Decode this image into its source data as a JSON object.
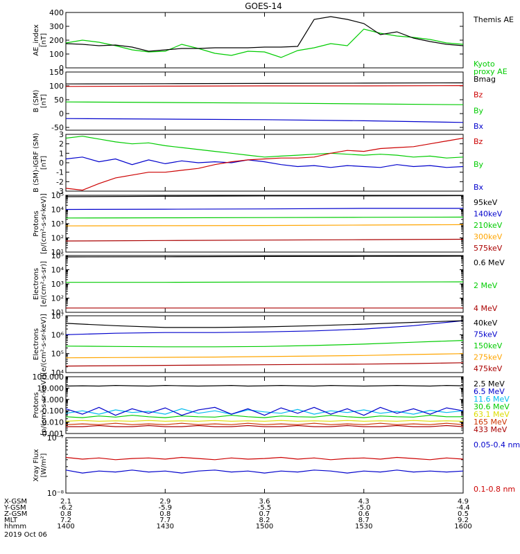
{
  "title": "GOES-14",
  "colors": {
    "black": "#000000",
    "red": "#cc0000",
    "green": "#00cc00",
    "blue": "#0000cc",
    "orange": "#ffa500",
    "cyan": "#00bbee",
    "yellow": "#dddd00",
    "magenta": "#cc00cc",
    "darkred": "#aa0000"
  },
  "x_axis": {
    "rows": [
      {
        "label": "X-GSM",
        "values": [
          "2.1",
          "2.9",
          "3.6",
          "4.3",
          "4.9"
        ]
      },
      {
        "label": "Y-GSM",
        "values": [
          "-6.2",
          "-5.9",
          "-5.5",
          "-5.0",
          "-4.4"
        ]
      },
      {
        "label": "Z-GSM",
        "values": [
          "0.8",
          "0.8",
          "0.7",
          "0.6",
          "0.5"
        ]
      },
      {
        "label": "MLT",
        "values": [
          "7.2",
          "7.7",
          "8.2",
          "8.7",
          "9.2"
        ]
      },
      {
        "label": "hhmm",
        "values": [
          "1400",
          "1430",
          "1500",
          "1530",
          "1600"
        ]
      }
    ],
    "date": "2019 Oct 06"
  },
  "chart_data": [
    {
      "type": "line",
      "ylabel": "AE_index\n[nT]",
      "ylim": [
        0,
        400
      ],
      "log": false,
      "yticks": [
        0,
        100,
        200,
        300,
        400
      ],
      "yticklabels": [
        "0",
        "100",
        "200",
        "300",
        "400"
      ],
      "x": [
        1400,
        1405,
        1410,
        1415,
        1420,
        1425,
        1430,
        1435,
        1440,
        1445,
        1450,
        1455,
        1500,
        1505,
        1510,
        1515,
        1520,
        1525,
        1530,
        1535,
        1540,
        1545,
        1550,
        1555,
        1600
      ],
      "series": [
        {
          "name": "Kyoto\nproxy AE",
          "color": "#00cc00",
          "values": [
            180,
            200,
            185,
            160,
            130,
            115,
            120,
            170,
            140,
            105,
            90,
            120,
            115,
            75,
            125,
            145,
            175,
            160,
            280,
            250,
            230,
            220,
            205,
            180,
            170
          ]
        },
        {
          "name": "Themis AE",
          "color": "#000000",
          "values": [
            175,
            170,
            160,
            165,
            150,
            120,
            130,
            140,
            140,
            145,
            145,
            145,
            150,
            150,
            155,
            350,
            370,
            350,
            320,
            240,
            260,
            215,
            190,
            170,
            160
          ]
        }
      ],
      "legend_placement": "right"
    },
    {
      "type": "line",
      "ylabel": "B (SM)\n[nT]",
      "ylim": [
        -60,
        150
      ],
      "log": false,
      "yticks": [
        -50,
        0,
        50,
        100,
        150
      ],
      "yticklabels": [
        "-50",
        "0",
        "50",
        "100",
        "150"
      ],
      "x": [
        1400,
        1430,
        1500,
        1530,
        1600
      ],
      "series": [
        {
          "name": "Bx",
          "color": "#0000cc",
          "values": [
            -18,
            -20,
            -22,
            -26,
            -32
          ]
        },
        {
          "name": "By",
          "color": "#00cc00",
          "values": [
            42,
            40,
            38,
            35,
            32
          ]
        },
        {
          "name": "Bz",
          "color": "#cc0000",
          "values": [
            98,
            99,
            100,
            100,
            101
          ]
        },
        {
          "name": "Bmag",
          "color": "#000000",
          "values": [
            107,
            108,
            109,
            110,
            111
          ]
        }
      ],
      "legend_placement": "right"
    },
    {
      "type": "line",
      "ylabel": "B (SM)-IGRF (SM)\n[nT]",
      "ylim": [
        -3,
        3
      ],
      "log": false,
      "yticks": [
        -3,
        -2,
        -1,
        0,
        1,
        2,
        3
      ],
      "yticklabels": [
        "-3",
        "-2",
        "-1",
        "0",
        "1",
        "2",
        "3"
      ],
      "x": [
        1400,
        1405,
        1410,
        1415,
        1420,
        1425,
        1430,
        1435,
        1440,
        1445,
        1450,
        1455,
        1500,
        1505,
        1510,
        1515,
        1520,
        1525,
        1530,
        1535,
        1540,
        1545,
        1550,
        1555,
        1600
      ],
      "series": [
        {
          "name": "Bx",
          "color": "#0000cc",
          "values": [
            0.4,
            0.6,
            0.1,
            0.4,
            -0.2,
            0.3,
            -0.1,
            0.2,
            0.0,
            0.1,
            0.0,
            0.3,
            0.1,
            -0.2,
            -0.4,
            -0.3,
            -0.5,
            -0.3,
            -0.4,
            -0.5,
            -0.2,
            -0.4,
            -0.3,
            -0.5,
            -0.4
          ]
        },
        {
          "name": "By",
          "color": "#00cc00",
          "values": [
            2.6,
            2.8,
            2.5,
            2.2,
            2.0,
            2.1,
            1.8,
            1.6,
            1.4,
            1.2,
            1.0,
            0.8,
            0.6,
            0.7,
            0.8,
            0.9,
            1.0,
            0.9,
            0.8,
            0.9,
            0.8,
            0.6,
            0.7,
            0.5,
            0.6
          ]
        },
        {
          "name": "Bz",
          "color": "#cc0000",
          "values": [
            -2.7,
            -2.9,
            -2.2,
            -1.6,
            -1.3,
            -1.0,
            -1.0,
            -0.8,
            -0.6,
            -0.2,
            0.1,
            0.3,
            0.4,
            0.5,
            0.5,
            0.6,
            1.0,
            1.3,
            1.2,
            1.5,
            1.6,
            1.7,
            2.0,
            2.3,
            2.6
          ]
        }
      ],
      "legend_placement": "right"
    },
    {
      "type": "line",
      "ylabel": "Protons\n[p/(cm²-s-sr-keV)]",
      "ylim": [
        10,
        100000
      ],
      "log": true,
      "yticks": [
        10,
        100,
        1000,
        10000,
        100000
      ],
      "yticklabels": [
        "10¹",
        "10²",
        "10³",
        "10⁴",
        "10⁵"
      ],
      "x": [
        1400,
        1430,
        1500,
        1530,
        1600
      ],
      "series": [
        {
          "name": "575keV",
          "color": "#aa0000",
          "values": [
            60,
            65,
            70,
            75,
            80
          ]
        },
        {
          "name": "300keV",
          "color": "#ffa500",
          "values": [
            700,
            720,
            750,
            800,
            850
          ]
        },
        {
          "name": "210keV",
          "color": "#00cc00",
          "values": [
            2500,
            2600,
            2700,
            2800,
            2900
          ]
        },
        {
          "name": "140keV",
          "color": "#0000cc",
          "values": [
            10000,
            10500,
            11000,
            12000,
            12000
          ]
        },
        {
          "name": "95keV",
          "color": "#000000",
          "values": [
            80000,
            85000,
            90000,
            90000,
            95000
          ]
        }
      ],
      "legend_placement": "right"
    },
    {
      "type": "line",
      "ylabel": "Electrons\n[e/(cm²-s-sr)]",
      "ylim": [
        10,
        100000
      ],
      "log": true,
      "yticks": [
        10,
        100,
        1000,
        10000,
        100000
      ],
      "yticklabels": [
        "10¹",
        "10²",
        "10³",
        "10⁴",
        "10⁵"
      ],
      "x": [
        1400,
        1430,
        1500,
        1530,
        1600
      ],
      "series": [
        {
          "name": "4 MeV",
          "color": "#aa0000",
          "values": [
            20,
            20,
            20,
            20,
            20
          ]
        },
        {
          "name": "2 MeV",
          "color": "#00cc00",
          "values": [
            1300,
            1300,
            1350,
            1350,
            1400
          ]
        },
        {
          "name": "0.6 MeV",
          "color": "#000000",
          "values": [
            80000,
            82000,
            85000,
            87000,
            90000
          ]
        }
      ],
      "legend_placement": "right"
    },
    {
      "type": "line",
      "ylabel": "Electrons\n[e/(cm²-s-sr-keV)]",
      "ylim": [
        10000,
        10000000
      ],
      "log": true,
      "yticks": [
        10000,
        100000,
        1000000,
        10000000
      ],
      "yticklabels": [
        "10⁴",
        "10⁵",
        "10⁶",
        "10⁷"
      ],
      "x": [
        1400,
        1415,
        1430,
        1445,
        1500,
        1515,
        1530,
        1545,
        1600
      ],
      "series": [
        {
          "name": "475keV",
          "color": "#aa0000",
          "values": [
            22000,
            23000,
            24000,
            25000,
            26000,
            27000,
            28000,
            30000,
            33000
          ]
        },
        {
          "name": "275keV",
          "color": "#ffa500",
          "values": [
            60000,
            62000,
            64000,
            66000,
            70000,
            75000,
            80000,
            90000,
            100000
          ]
        },
        {
          "name": "150keV",
          "color": "#00cc00",
          "values": [
            250000,
            240000,
            230000,
            230000,
            240000,
            270000,
            320000,
            400000,
            500000
          ]
        },
        {
          "name": "75keV",
          "color": "#0000cc",
          "values": [
            1000000,
            1200000,
            1300000,
            1300000,
            1400000,
            1600000,
            2000000,
            3000000,
            5500000
          ]
        },
        {
          "name": "40keV",
          "color": "#000000",
          "values": [
            4000000,
            3000000,
            2400000,
            2400000,
            2600000,
            3000000,
            3600000,
            4500000,
            5500000
          ]
        }
      ],
      "legend_placement": "right"
    },
    {
      "type": "line",
      "ylabel": "Protons\n[p/(cm²-s-sr-keV)]",
      "ylim": [
        0.001,
        100
      ],
      "log": true,
      "yticks": [
        0.001,
        0.01,
        0.1,
        1,
        10,
        100
      ],
      "yticklabels": [
        "0.001",
        "0.010",
        "0.100",
        "1.000",
        "10.000",
        "100.000"
      ],
      "x": [
        1400,
        1405,
        1410,
        1415,
        1420,
        1425,
        1430,
        1435,
        1440,
        1445,
        1450,
        1455,
        1500,
        1505,
        1510,
        1515,
        1520,
        1525,
        1530,
        1535,
        1540,
        1545,
        1550,
        1555,
        1600
      ],
      "series": [
        {
          "name": "433 MeV",
          "color": "#aa0000",
          "values": [
            0.004,
            0.004,
            0.005,
            0.004,
            0.004,
            0.005,
            0.004,
            0.004,
            0.005,
            0.004,
            0.004,
            0.005,
            0.004,
            0.004,
            0.005,
            0.004,
            0.004,
            0.005,
            0.004,
            0.004,
            0.005,
            0.004,
            0.004,
            0.005,
            0.004
          ]
        },
        {
          "name": "165 MeV",
          "color": "#cc3300",
          "values": [
            0.006,
            0.007,
            0.006,
            0.008,
            0.006,
            0.007,
            0.006,
            0.008,
            0.006,
            0.007,
            0.006,
            0.008,
            0.006,
            0.007,
            0.006,
            0.008,
            0.006,
            0.007,
            0.006,
            0.008,
            0.006,
            0.007,
            0.006,
            0.008,
            0.006
          ]
        },
        {
          "name": "63.1 MeV",
          "color": "#dddd00",
          "values": [
            0.012,
            0.014,
            0.012,
            0.013,
            0.012,
            0.014,
            0.012,
            0.013,
            0.012,
            0.014,
            0.012,
            0.013,
            0.012,
            0.014,
            0.012,
            0.013,
            0.012,
            0.014,
            0.012,
            0.013,
            0.012,
            0.014,
            0.012,
            0.013,
            0.012
          ]
        },
        {
          "name": "30.6 MeV",
          "color": "#00cc00",
          "values": [
            0.03,
            0.025,
            0.035,
            0.028,
            0.04,
            0.03,
            0.025,
            0.035,
            0.03,
            0.028,
            0.04,
            0.03,
            0.025,
            0.035,
            0.03,
            0.028,
            0.04,
            0.03,
            0.025,
            0.035,
            0.03,
            0.028,
            0.04,
            0.03,
            0.03
          ]
        },
        {
          "name": "11.6 MeV",
          "color": "#00bbee",
          "values": [
            0.06,
            0.1,
            0.05,
            0.12,
            0.07,
            0.09,
            0.05,
            0.15,
            0.06,
            0.1,
            0.05,
            0.12,
            0.08,
            0.06,
            0.13,
            0.05,
            0.1,
            0.07,
            0.12,
            0.06,
            0.09,
            0.05,
            0.11,
            0.07,
            0.1
          ]
        },
        {
          "name": "6.5 MeV",
          "color": "#0000cc",
          "values": [
            0.15,
            0.05,
            0.2,
            0.04,
            0.15,
            0.06,
            0.18,
            0.04,
            0.12,
            0.2,
            0.05,
            0.15,
            0.04,
            0.18,
            0.06,
            0.2,
            0.05,
            0.15,
            0.04,
            0.2,
            0.06,
            0.15,
            0.05,
            0.18,
            0.1
          ]
        },
        {
          "name": "2.5 MeV",
          "color": "#000000",
          "values": [
            15,
            16,
            15,
            17,
            16,
            15,
            17,
            16,
            15,
            16,
            17,
            15,
            16,
            17,
            16,
            15,
            17,
            16,
            15,
            16,
            17,
            16,
            15,
            17,
            16
          ]
        }
      ],
      "legend_placement": "right"
    },
    {
      "type": "line",
      "ylabel": "Xray Flux\n[W/m²]",
      "ylim": [
        1e-08,
        1e-07
      ],
      "log": true,
      "yticks": [
        1e-08,
        1e-07
      ],
      "yticklabels": [
        "10⁻⁸",
        "10⁻⁷"
      ],
      "x": [
        1400,
        1405,
        1410,
        1415,
        1420,
        1425,
        1430,
        1435,
        1440,
        1445,
        1450,
        1455,
        1500,
        1505,
        1510,
        1515,
        1520,
        1525,
        1530,
        1535,
        1540,
        1545,
        1550,
        1555,
        1600
      ],
      "series": [
        {
          "name": "0.1-0.8 nm",
          "color": "#cc0000",
          "values": [
            4.4e-08,
            4.1e-08,
            4.3e-08,
            4e-08,
            4.2e-08,
            4.3e-08,
            4.1e-08,
            4.4e-08,
            4.2e-08,
            4e-08,
            4.3e-08,
            4.1e-08,
            4.2e-08,
            4.4e-08,
            4.1e-08,
            4.3e-08,
            4e-08,
            4.2e-08,
            4.3e-08,
            4.1e-08,
            4.4e-08,
            4.2e-08,
            4e-08,
            4.3e-08,
            4.1e-08
          ]
        },
        {
          "name": "0.05-0.4 nm",
          "color": "#0000cc",
          "values": [
            2.6e-08,
            2.3e-08,
            2.5e-08,
            2.4e-08,
            2.6e-08,
            2.4e-08,
            2.5e-08,
            2.3e-08,
            2.5e-08,
            2.6e-08,
            2.4e-08,
            2.5e-08,
            2.3e-08,
            2.5e-08,
            2.4e-08,
            2.6e-08,
            2.5e-08,
            2.3e-08,
            2.5e-08,
            2.4e-08,
            2.6e-08,
            2.4e-08,
            2.5e-08,
            2.4e-08,
            2.5e-08
          ]
        }
      ],
      "legend_placement": "right"
    }
  ]
}
